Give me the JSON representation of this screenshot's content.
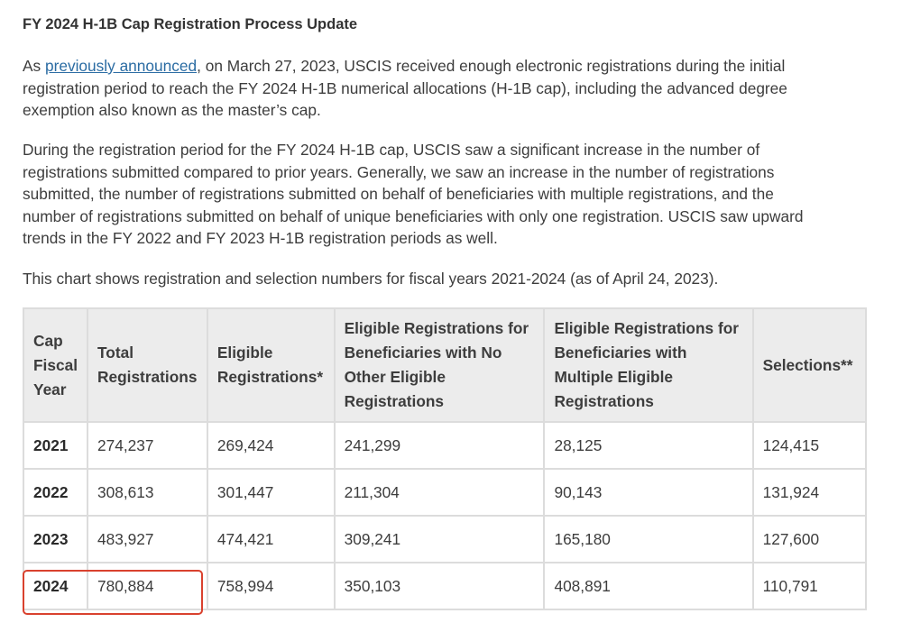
{
  "title": "FY 2024 H-1B Cap Registration Process Update",
  "para1": {
    "prefix": "As ",
    "link": "previously announced",
    "line1_rest": ", on March 27, 2023, USCIS received enough electronic registrations during the initial",
    "line2": "registration period to reach the FY 2024 H-1B numerical allocations (H-1B cap), including the advanced degree",
    "line3": "exemption also known as the master’s cap."
  },
  "para2": [
    "During the registration period for the FY 2024 H-1B cap, USCIS saw a significant increase in the number of",
    "registrations submitted compared to prior years. Generally, we saw an increase in the number of registrations",
    "submitted, the number of registrations submitted on behalf of beneficiaries with multiple registrations, and the",
    "number of registrations submitted on behalf of unique beneficiaries with only one registration. USCIS saw upward",
    "trends in the FY 2022 and FY 2023 H-1B registration periods as well."
  ],
  "para3": "This chart shows registration and selection numbers for fiscal years 2021-2024 (as of April 24, 2023).",
  "table": {
    "headers": [
      [
        "Cap",
        "Fiscal",
        "Year"
      ],
      [
        "Total",
        "Registrations"
      ],
      [
        "Eligible",
        "Registrations*"
      ],
      [
        "Eligible Registrations for",
        "Beneficiaries with No",
        "Other Eligible",
        "Registrations"
      ],
      [
        "Eligible Registrations for",
        "Beneficiaries with",
        "Multiple Eligible",
        "Registrations"
      ],
      [
        "Selections**"
      ]
    ],
    "rows": [
      [
        "2021",
        "274,237",
        "269,424",
        "241,299",
        "28,125",
        "124,415"
      ],
      [
        "2022",
        "308,613",
        "301,447",
        "211,304",
        "90,143",
        "131,924"
      ],
      [
        "2023",
        "483,927",
        "474,421",
        "309,241",
        "165,180",
        "127,600"
      ],
      [
        "2024",
        "780,884",
        "758,994",
        "350,103",
        "408,891",
        "110,791"
      ]
    ],
    "highlight_color": "#d9412e"
  }
}
